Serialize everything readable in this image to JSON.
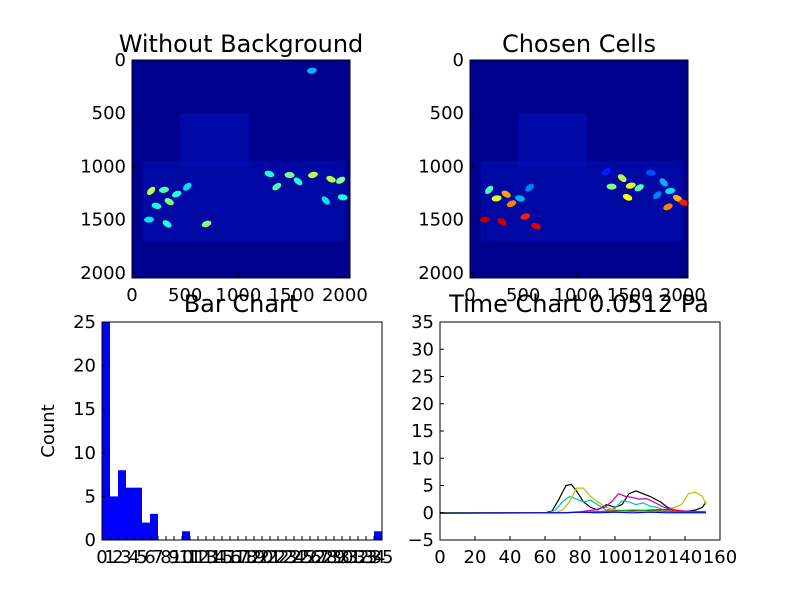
{
  "chart_data": [
    {
      "type": "heatmap",
      "title": "Without Background",
      "xlim": [
        0,
        2048
      ],
      "ylim": [
        2048,
        0
      ],
      "x_ticks": [
        "0",
        "500",
        "1000",
        "1500",
        "2000"
      ],
      "y_ticks": [
        "0",
        "500",
        "1000",
        "1500",
        "2000"
      ],
      "colormap": "jet",
      "background_color": "#00008f",
      "blobs": [
        {
          "x": 180,
          "y": 1230,
          "level": 0.55
        },
        {
          "x": 300,
          "y": 1220,
          "level": 0.45
        },
        {
          "x": 350,
          "y": 1330,
          "level": 0.5
        },
        {
          "x": 420,
          "y": 1260,
          "level": 0.4
        },
        {
          "x": 230,
          "y": 1370,
          "level": 0.4
        },
        {
          "x": 520,
          "y": 1190,
          "level": 0.35
        },
        {
          "x": 160,
          "y": 1500,
          "level": 0.35
        },
        {
          "x": 330,
          "y": 1540,
          "level": 0.4
        },
        {
          "x": 700,
          "y": 1540,
          "level": 0.5
        },
        {
          "x": 1290,
          "y": 1070,
          "level": 0.4
        },
        {
          "x": 1360,
          "y": 1190,
          "level": 0.45
        },
        {
          "x": 1480,
          "y": 1080,
          "level": 0.5
        },
        {
          "x": 1560,
          "y": 1140,
          "level": 0.4
        },
        {
          "x": 1700,
          "y": 1080,
          "level": 0.55
        },
        {
          "x": 1870,
          "y": 1120,
          "level": 0.55
        },
        {
          "x": 1960,
          "y": 1130,
          "level": 0.5
        },
        {
          "x": 1980,
          "y": 1290,
          "level": 0.4
        },
        {
          "x": 1820,
          "y": 1320,
          "level": 0.35
        },
        {
          "x": 1690,
          "y": 100,
          "level": 0.3
        }
      ]
    },
    {
      "type": "heatmap",
      "title": "Chosen Cells",
      "xlim": [
        0,
        2048
      ],
      "ylim": [
        2048,
        0
      ],
      "x_ticks": [
        "0",
        "500",
        "1000",
        "1500",
        "2000"
      ],
      "y_ticks": [
        "0",
        "500",
        "1000",
        "1500",
        "2000"
      ],
      "colormap": "jet",
      "background_color": "#00008f",
      "blobs": [
        {
          "x": 180,
          "y": 1220,
          "level": 0.45
        },
        {
          "x": 250,
          "y": 1300,
          "level": 0.6
        },
        {
          "x": 340,
          "y": 1260,
          "level": 0.72
        },
        {
          "x": 390,
          "y": 1350,
          "level": 0.75
        },
        {
          "x": 470,
          "y": 1300,
          "level": 0.3
        },
        {
          "x": 560,
          "y": 1200,
          "level": 0.25
        },
        {
          "x": 140,
          "y": 1500,
          "level": 0.95
        },
        {
          "x": 300,
          "y": 1520,
          "level": 0.92
        },
        {
          "x": 520,
          "y": 1470,
          "level": 0.85
        },
        {
          "x": 620,
          "y": 1560,
          "level": 0.9
        },
        {
          "x": 1280,
          "y": 1050,
          "level": 0.15
        },
        {
          "x": 1330,
          "y": 1190,
          "level": 0.5
        },
        {
          "x": 1430,
          "y": 1110,
          "level": 0.55
        },
        {
          "x": 1510,
          "y": 1180,
          "level": 0.6
        },
        {
          "x": 1480,
          "y": 1290,
          "level": 0.62
        },
        {
          "x": 1590,
          "y": 1200,
          "level": 0.45
        },
        {
          "x": 1700,
          "y": 1060,
          "level": 0.2
        },
        {
          "x": 1820,
          "y": 1150,
          "level": 0.3
        },
        {
          "x": 1880,
          "y": 1230,
          "level": 0.35
        },
        {
          "x": 1950,
          "y": 1300,
          "level": 0.7
        },
        {
          "x": 1860,
          "y": 1380,
          "level": 0.75
        },
        {
          "x": 2010,
          "y": 1340,
          "level": 0.85
        },
        {
          "x": 1760,
          "y": 1270,
          "level": 0.25
        }
      ]
    },
    {
      "type": "bar",
      "title": "Bar Chart",
      "xlabel": "",
      "ylabel": "Count",
      "ylim": [
        0,
        25
      ],
      "y_ticks": [
        "0",
        "5",
        "10",
        "15",
        "20",
        "25"
      ],
      "x_tick_labels": [
        "0",
        "1",
        "2",
        "3",
        "4",
        "5",
        "6",
        "7",
        "8",
        "9",
        "10",
        "11",
        "12",
        "13",
        "14",
        "15",
        "16",
        "17",
        "18",
        "19",
        "20",
        "21",
        "22",
        "23",
        "24",
        "25",
        "26",
        "27",
        "28",
        "29",
        "30",
        "31",
        "32",
        "33",
        "34",
        "35"
      ],
      "bar_color": "#0000ff",
      "bins": [
        {
          "x0": 0,
          "x1": 1,
          "value": 25
        },
        {
          "x0": 1,
          "x1": 2,
          "value": 5
        },
        {
          "x0": 2,
          "x1": 3,
          "value": 8
        },
        {
          "x0": 3,
          "x1": 4,
          "value": 6
        },
        {
          "x0": 4,
          "x1": 5,
          "value": 6
        },
        {
          "x0": 5,
          "x1": 6,
          "value": 2
        },
        {
          "x0": 6,
          "x1": 7,
          "value": 3
        },
        {
          "x0": 10,
          "x1": 11,
          "value": 1
        },
        {
          "x0": 34,
          "x1": 35,
          "value": 1
        }
      ],
      "xlim": [
        0,
        35
      ]
    },
    {
      "type": "line",
      "title": "Time Chart 0.0512 Pa",
      "xlabel": "",
      "ylabel": "",
      "xlim": [
        0,
        160
      ],
      "ylim": [
        -5,
        35
      ],
      "x_ticks": [
        "0",
        "20",
        "40",
        "60",
        "80",
        "100",
        "120",
        "140",
        "160"
      ],
      "y_ticks": [
        "−5",
        "0",
        "5",
        "10",
        "15",
        "20",
        "25",
        "30",
        "35"
      ],
      "series": [
        {
          "color": "#000000",
          "x": [
            0,
            60,
            64,
            68,
            72,
            75,
            78,
            82,
            86,
            90,
            95,
            100,
            104,
            108,
            112,
            116,
            120,
            126,
            130,
            134,
            138,
            142,
            146,
            150,
            152
          ],
          "y": [
            0,
            0,
            0.3,
            2.5,
            5,
            5.2,
            4,
            2,
            1,
            0.5,
            1.5,
            1,
            1.5,
            3.5,
            4,
            3.5,
            3,
            2,
            1,
            0.5,
            0.3,
            0.3,
            0.5,
            1,
            2
          ]
        },
        {
          "color": "#00bfbf",
          "x": [
            0,
            62,
            66,
            70,
            74,
            78,
            82,
            86,
            90,
            95,
            100,
            104,
            108,
            112,
            116,
            120,
            124,
            128,
            132,
            140,
            152
          ],
          "y": [
            0,
            0,
            0.5,
            2,
            3,
            2.5,
            2,
            2.3,
            1.5,
            0.5,
            0.8,
            2.2,
            2,
            1.5,
            1.8,
            1.2,
            1,
            0.5,
            0.3,
            0.2,
            0.2
          ]
        },
        {
          "color": "#bfbf00",
          "x": [
            0,
            66,
            70,
            74,
            78,
            82,
            86,
            90,
            95,
            100,
            110,
            120,
            128,
            134,
            138,
            142,
            146,
            150,
            152
          ],
          "y": [
            0,
            0,
            0.5,
            2,
            4.5,
            4.5,
            3,
            2,
            1,
            0.5,
            0.3,
            0.3,
            0.5,
            1,
            1.5,
            3.5,
            3.8,
            3,
            1.5
          ]
        },
        {
          "color": "#bf00bf",
          "x": [
            0,
            70,
            80,
            88,
            94,
            98,
            102,
            106,
            110,
            114,
            118,
            122,
            128,
            134,
            140,
            152
          ],
          "y": [
            0,
            0,
            0.2,
            0.5,
            1,
            2,
            3.5,
            3,
            2.8,
            2.5,
            2.6,
            2,
            1,
            0.5,
            0.3,
            0.2
          ]
        },
        {
          "color": "#ff0000",
          "x": [
            0,
            70,
            80,
            90,
            100,
            110,
            120,
            130,
            140,
            152
          ],
          "y": [
            0,
            0,
            0.1,
            0.2,
            0.4,
            0.3,
            0.5,
            0.6,
            0.2,
            0.1
          ]
        },
        {
          "color": "#00a000",
          "x": [
            0,
            70,
            80,
            90,
            100,
            110,
            120,
            130,
            140,
            152
          ],
          "y": [
            0,
            0,
            0.1,
            0.2,
            0.3,
            0.5,
            0.4,
            0.2,
            0.1,
            0.1
          ]
        },
        {
          "color": "#0000ff",
          "x": [
            0,
            60,
            70,
            80,
            90,
            100,
            110,
            120,
            130,
            140,
            152
          ],
          "y": [
            -0.1,
            0,
            0,
            0.1,
            0,
            0.1,
            0,
            0.1,
            0,
            0,
            0
          ]
        }
      ]
    }
  ]
}
